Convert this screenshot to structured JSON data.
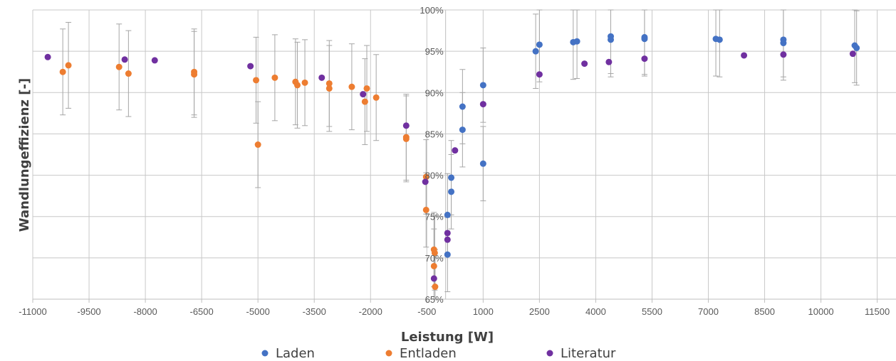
{
  "chart_data": {
    "type": "scatter",
    "title": "",
    "xlabel": "Leistung [W]",
    "ylabel": "Wandlungeffizienz [-]",
    "xlim": [
      -11000,
      12000
    ],
    "ylim": [
      65,
      100
    ],
    "x_ticks": [
      -11000,
      -9500,
      -8000,
      -6500,
      -5000,
      -3500,
      -2000,
      -500,
      1000,
      2500,
      4000,
      5500,
      7000,
      8500,
      10000,
      11500
    ],
    "x_tick_labels": [
      "-11000",
      "-9500",
      "-8000",
      "-6500",
      "-5000",
      "-3500",
      "-2000",
      "-500",
      "1000",
      "2500",
      "4000",
      "5500",
      "7000",
      "8500",
      "10000",
      "11500"
    ],
    "y_ticks": [
      65,
      70,
      75,
      80,
      85,
      90,
      95,
      100
    ],
    "y_tick_labels": [
      "65%",
      "70%",
      "75%",
      "80%",
      "85%",
      "90%",
      "95%",
      "100%"
    ],
    "grid": true,
    "legend_position": "bottom",
    "series": [
      {
        "name": "Laden",
        "color": "#4472C4",
        "points": [
          {
            "x": 50,
            "y": 75.2,
            "err": 5
          },
          {
            "x": 50,
            "y": 70.4,
            "err": 4.5
          },
          {
            "x": 150,
            "y": 79.7,
            "err": 4.5
          },
          {
            "x": 150,
            "y": 78.0,
            "err": 4.5
          },
          {
            "x": 450,
            "y": 88.3,
            "err": 4.5
          },
          {
            "x": 450,
            "y": 85.5,
            "err": 4.5
          },
          {
            "x": 1000,
            "y": 90.9,
            "err": 4.5
          },
          {
            "x": 1000,
            "y": 81.4,
            "err": 4.5
          },
          {
            "x": 2400,
            "y": 95.0,
            "err": 4.5
          },
          {
            "x": 2500,
            "y": 95.8,
            "err": 4.5
          },
          {
            "x": 3400,
            "y": 96.1,
            "err": 4.5
          },
          {
            "x": 3500,
            "y": 96.2,
            "err": 4.5
          },
          {
            "x": 4400,
            "y": 96.8,
            "err": 4.5
          },
          {
            "x": 4400,
            "y": 96.4,
            "err": 4.5
          },
          {
            "x": 5300,
            "y": 96.7,
            "err": 4.5
          },
          {
            "x": 5300,
            "y": 96.5,
            "err": 4.5
          },
          {
            "x": 7200,
            "y": 96.5,
            "err": 4.5
          },
          {
            "x": 7300,
            "y": 96.4,
            "err": 4.5
          },
          {
            "x": 9000,
            "y": 96.4,
            "err": 4.5
          },
          {
            "x": 9000,
            "y": 96.0,
            "err": 4.5
          },
          {
            "x": 10900,
            "y": 95.7,
            "err": 4.5
          },
          {
            "x": 10950,
            "y": 95.4,
            "err": 4.5
          }
        ]
      },
      {
        "name": "Entladen",
        "color": "#ED7D31",
        "points": [
          {
            "x": -10200,
            "y": 92.5,
            "err": 5.2
          },
          {
            "x": -10050,
            "y": 93.3,
            "err": 5.2
          },
          {
            "x": -8700,
            "y": 93.1,
            "err": 5.2
          },
          {
            "x": -8450,
            "y": 92.3,
            "err": 5.2
          },
          {
            "x": -6700,
            "y": 92.5,
            "err": 5.2
          },
          {
            "x": -6700,
            "y": 92.2,
            "err": 5.2
          },
          {
            "x": -5050,
            "y": 91.5,
            "err": 5.2
          },
          {
            "x": -4550,
            "y": 91.8,
            "err": 5.2
          },
          {
            "x": -4000,
            "y": 91.3,
            "err": 5.2
          },
          {
            "x": -3950,
            "y": 90.9,
            "err": 5.2
          },
          {
            "x": -3750,
            "y": 91.2,
            "err": 5.2
          },
          {
            "x": -3100,
            "y": 91.1,
            "err": 5.2
          },
          {
            "x": -3100,
            "y": 90.5,
            "err": 5.2
          },
          {
            "x": -2500,
            "y": 90.7,
            "err": 5.2
          },
          {
            "x": -2100,
            "y": 90.5,
            "err": 5.2
          },
          {
            "x": -2150,
            "y": 88.9,
            "err": 5.2
          },
          {
            "x": -1850,
            "y": 89.4,
            "err": 5.2
          },
          {
            "x": -5000,
            "y": 83.7,
            "err": 5.2
          },
          {
            "x": -1050,
            "y": 84.6,
            "err": 5.2
          },
          {
            "x": -1050,
            "y": 84.4,
            "err": 5.2
          },
          {
            "x": -520,
            "y": 79.8,
            "err": 4.5
          },
          {
            "x": -520,
            "y": 75.8,
            "err": 4.5
          },
          {
            "x": -310,
            "y": 71.0,
            "err": 4.5
          },
          {
            "x": -290,
            "y": 70.6,
            "err": 4.5
          },
          {
            "x": -310,
            "y": 69.0,
            "err": 4.5
          },
          {
            "x": -280,
            "y": 66.5,
            "err": 4.5
          }
        ]
      },
      {
        "name": "Literatur",
        "color": "#7030A0",
        "points": [
          {
            "x": -10600,
            "y": 94.3
          },
          {
            "x": -8550,
            "y": 94.0
          },
          {
            "x": -7750,
            "y": 93.9
          },
          {
            "x": -5200,
            "y": 93.2
          },
          {
            "x": -3300,
            "y": 91.8
          },
          {
            "x": -2200,
            "y": 89.8
          },
          {
            "x": -1050,
            "y": 86.0
          },
          {
            "x": -540,
            "y": 79.2
          },
          {
            "x": 50,
            "y": 73.0
          },
          {
            "x": 50,
            "y": 72.2
          },
          {
            "x": -310,
            "y": 67.5
          },
          {
            "x": 250,
            "y": 83.0
          },
          {
            "x": 1000,
            "y": 88.6
          },
          {
            "x": 2500,
            "y": 92.2
          },
          {
            "x": 3700,
            "y": 93.5
          },
          {
            "x": 4350,
            "y": 93.7
          },
          {
            "x": 5300,
            "y": 94.1
          },
          {
            "x": 7950,
            "y": 94.5
          },
          {
            "x": 9000,
            "y": 94.6
          },
          {
            "x": 10850,
            "y": 94.7
          }
        ]
      }
    ]
  }
}
